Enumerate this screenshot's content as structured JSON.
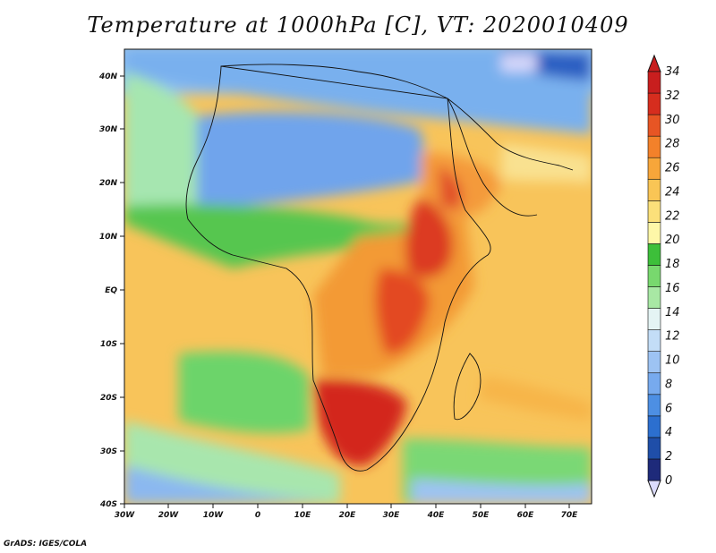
{
  "title": "Temperature at 1000hPa [C], VT: 2020010409",
  "credit": "GrADS: IGES/COLA",
  "map": {
    "lat_labels": [
      "40N",
      "30N",
      "20N",
      "10N",
      "EQ",
      "10S",
      "20S",
      "30S",
      "40S"
    ],
    "lon_labels": [
      "30W",
      "20W",
      "10W",
      "0",
      "10E",
      "20E",
      "30E",
      "40E",
      "50E",
      "60E",
      "70E"
    ],
    "lat_range": [
      -40,
      45
    ],
    "lon_range": [
      -30,
      75
    ]
  },
  "colorbar": {
    "labels": [
      "34",
      "32",
      "30",
      "28",
      "26",
      "24",
      "22",
      "20",
      "18",
      "16",
      "14",
      "12",
      "10",
      "8",
      "6",
      "4",
      "2",
      "0"
    ],
    "colors": [
      "#1e2a7a",
      "#1f4ea8",
      "#2c6fcf",
      "#4d8fe3",
      "#77aaee",
      "#9dc3f3",
      "#c3ddf7",
      "#e4f4f4",
      "#a8e8a4",
      "#78d86e",
      "#3dbf3a",
      "#fef7a8",
      "#fbe07a",
      "#f9c555",
      "#f7a63a",
      "#f3812a",
      "#e75524",
      "#d62d1e",
      "#c81e1e"
    ]
  }
}
